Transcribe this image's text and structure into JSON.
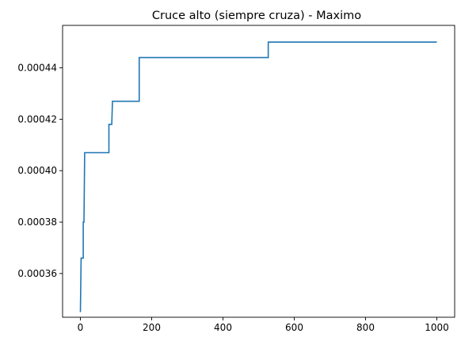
{
  "chart_data": {
    "type": "line",
    "title": "Cruce alto (siempre cruza) - Maximo",
    "xlabel": "",
    "ylabel": "",
    "xlim": [
      -50,
      1050
    ],
    "ylim": [
      0.000343,
      0.0004565
    ],
    "x_ticks": [
      0,
      200,
      400,
      600,
      800,
      1000
    ],
    "x_tick_labels": [
      "0",
      "200",
      "400",
      "600",
      "800",
      "1000"
    ],
    "y_ticks": [
      0.00036,
      0.00038,
      0.0004,
      0.00042,
      0.00044
    ],
    "y_tick_labels": [
      "0.00036",
      "0.00038",
      "0.00040",
      "0.00042",
      "0.00044"
    ],
    "grid": false,
    "legend": "none",
    "series": [
      {
        "color": "#1f77b4",
        "step": true,
        "points": [
          [
            0,
            0.000345
          ],
          [
            2,
            0.000366
          ],
          [
            8,
            0.000366
          ],
          [
            8,
            0.00038
          ],
          [
            10,
            0.00038
          ],
          [
            12,
            0.000407
          ],
          [
            80,
            0.000407
          ],
          [
            80,
            0.000418
          ],
          [
            88,
            0.000418
          ],
          [
            90,
            0.000427
          ],
          [
            165,
            0.000427
          ],
          [
            165,
            0.000444
          ],
          [
            527,
            0.000444
          ],
          [
            527,
            0.00045
          ],
          [
            1000,
            0.00045
          ]
        ]
      }
    ]
  }
}
